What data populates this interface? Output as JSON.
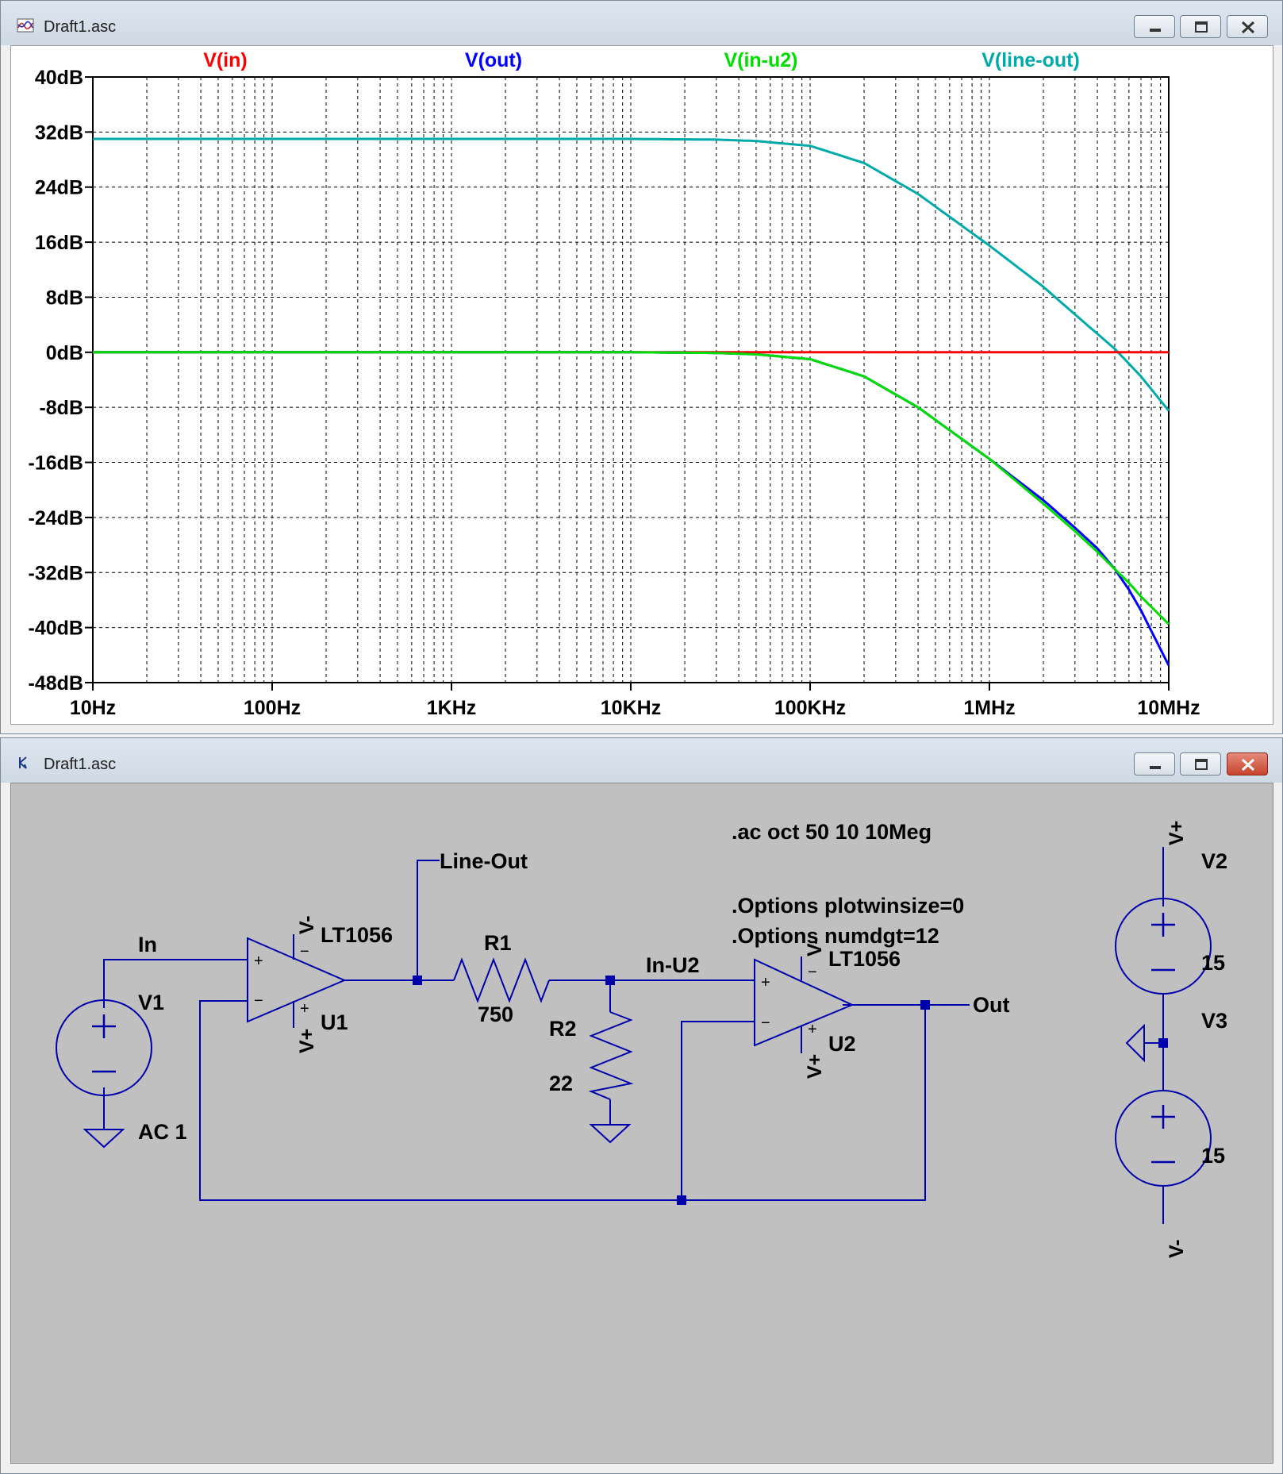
{
  "plot_window": {
    "title": "Draft1.asc",
    "icon": "waveform-viewer-icon",
    "buttons": [
      "minimize-icon",
      "maximize-icon",
      "close-icon"
    ]
  },
  "schematic_window": {
    "title": "Draft1.asc",
    "icon": "schematic-editor-icon",
    "buttons": [
      "minimize-icon",
      "maximize-icon",
      "close-icon"
    ]
  },
  "chart_data": {
    "type": "line",
    "x_scale": "log",
    "xlim": [
      10,
      10000000
    ],
    "ylim": [
      -48,
      40
    ],
    "x_ticks": [
      {
        "value": 10,
        "label": "10Hz"
      },
      {
        "value": 100,
        "label": "100Hz"
      },
      {
        "value": 1000,
        "label": "1KHz"
      },
      {
        "value": 10000,
        "label": "10KHz"
      },
      {
        "value": 100000,
        "label": "100KHz"
      },
      {
        "value": 1000000,
        "label": "1MHz"
      },
      {
        "value": 10000000,
        "label": "10MHz"
      }
    ],
    "y_ticks": [
      {
        "value": 40,
        "label": "40dB"
      },
      {
        "value": 32,
        "label": "32dB"
      },
      {
        "value": 24,
        "label": "24dB"
      },
      {
        "value": 16,
        "label": "16dB"
      },
      {
        "value": 8,
        "label": "8dB"
      },
      {
        "value": 0,
        "label": "0dB"
      },
      {
        "value": -8,
        "label": "-8dB"
      },
      {
        "value": -16,
        "label": "-16dB"
      },
      {
        "value": -24,
        "label": "-24dB"
      },
      {
        "value": -32,
        "label": "-32dB"
      },
      {
        "value": -40,
        "label": "-40dB"
      },
      {
        "value": -48,
        "label": "-48dB"
      }
    ],
    "grid": true,
    "legend_position": "top",
    "series": [
      {
        "name": "V(in)",
        "color": "#ff0000",
        "x": [
          10,
          10000000
        ],
        "y": [
          0,
          0
        ]
      },
      {
        "name": "V(out)",
        "color": "#0000ff",
        "x": [
          10,
          10000,
          30000,
          50000,
          100000,
          200000,
          400000,
          1000000,
          2000000,
          3000000,
          4000000,
          5000000,
          6000000,
          7000000,
          8000000,
          10000000
        ],
        "y": [
          0,
          0,
          -0.1,
          -0.3,
          -1,
          -3.5,
          -8,
          -15.5,
          -21.5,
          -25.5,
          -28.5,
          -31.5,
          -34.5,
          -37.5,
          -40.5,
          -45.5
        ]
      },
      {
        "name": "V(in-u2)",
        "color": "#00dd00",
        "x": [
          10,
          10000,
          30000,
          50000,
          100000,
          200000,
          400000,
          1000000,
          2000000,
          3000000,
          4000000,
          5000000,
          6000000,
          7000000,
          8000000,
          10000000
        ],
        "y": [
          0,
          0,
          -0.1,
          -0.3,
          -1,
          -3.5,
          -8,
          -15.5,
          -22,
          -26,
          -29,
          -31.5,
          -33.5,
          -35.5,
          -37,
          -39.5
        ]
      },
      {
        "name": "V(line-out)",
        "color": "#00aaaa",
        "x": [
          10,
          10000,
          30000,
          50000,
          100000,
          200000,
          400000,
          1000000,
          2000000,
          3000000,
          5000000,
          7000000,
          10000000
        ],
        "y": [
          31,
          31,
          30.9,
          30.7,
          30,
          27.5,
          23,
          15.5,
          9.5,
          5.5,
          0.5,
          -3.5,
          -8.5
        ]
      }
    ]
  },
  "schematic": {
    "labels": {
      "net_in": "In",
      "net_line_out": "Line-Out",
      "net_in_u2": "In-U2",
      "net_out": "Out",
      "v1_name": "V1",
      "v1_value": "AC 1",
      "u1_model": "LT1056",
      "u1_name": "U1",
      "u2_model": "LT1056",
      "u2_name": "U2",
      "r1_name": "R1",
      "r1_value": "750",
      "r2_name": "R2",
      "r2_value": "22",
      "v2_name": "V2",
      "v2_value": "15",
      "v3_name": "V3",
      "v3_value": "15",
      "vminus": "V-",
      "vplus": "V+",
      "plus": "+",
      "minus": "−"
    },
    "directives": {
      "ac": ".ac oct 50 10 10Meg",
      "opt1": ".Options plotwinsize=0",
      "opt2": ".Options numdgt=12"
    },
    "wire_color": "#0000aa"
  }
}
